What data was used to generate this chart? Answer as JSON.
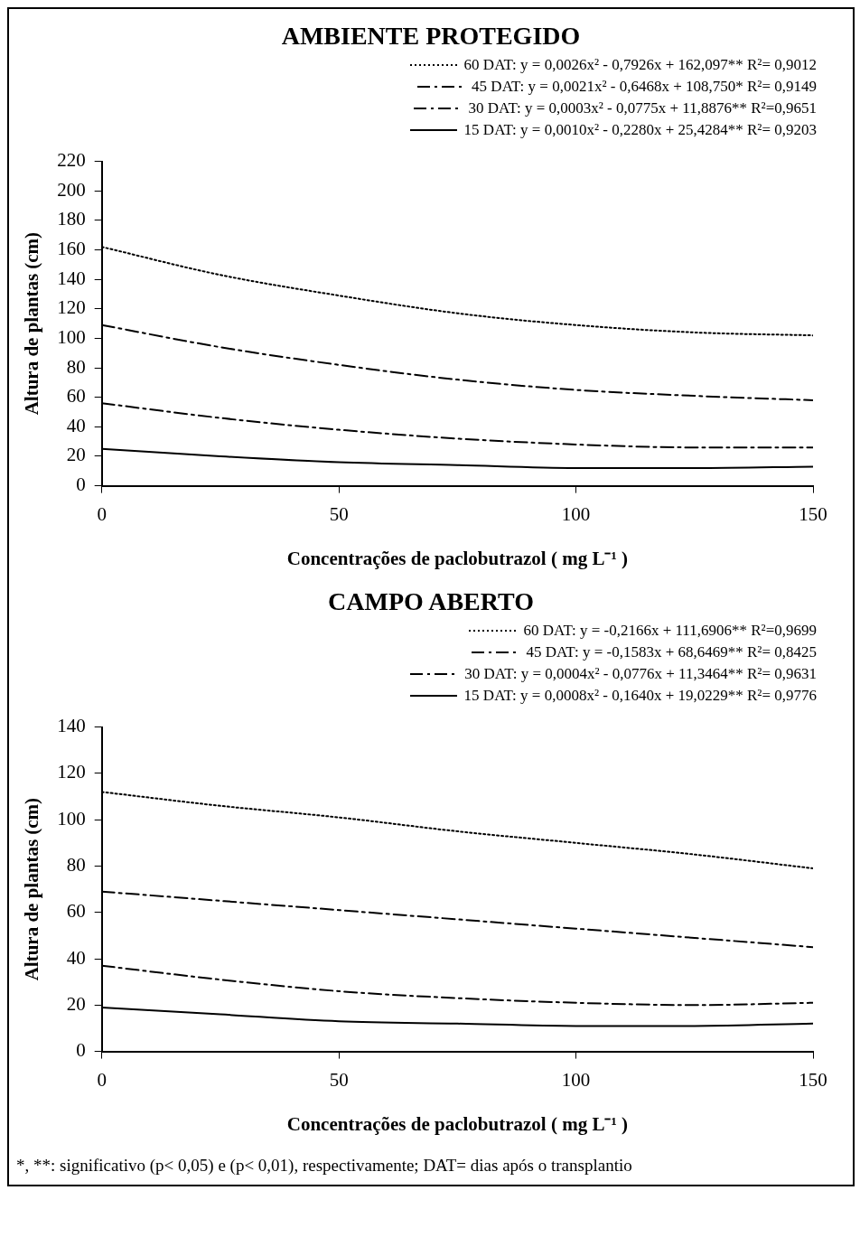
{
  "chart_data": [
    {
      "type": "line",
      "title": "AMBIENTE PROTEGIDO",
      "xlabel": "Concentrações de paclobutrazol ( mg L⁻¹ )",
      "ylabel": "Altura de plantas (cm)",
      "x": [
        0,
        25,
        50,
        75,
        100,
        125,
        150
      ],
      "series": [
        {
          "name": "60 DAT: y = 0,0026x² - 0,7926x + 162,097** R²= 0,9012",
          "color": "#000000",
          "line_style": "dotted",
          "values": [
            162,
            143,
            129,
            117,
            109,
            104,
            102
          ]
        },
        {
          "name": "45 DAT: y = 0,0021x² - 0,6468x + 108,750* R²= 0,9149",
          "color": "#000000",
          "line_style": "dashed",
          "values": [
            109,
            94,
            82,
            72,
            65,
            61,
            58
          ]
        },
        {
          "name": "30 DAT: y = 0,0003x² - 0,0775x + 11,8876** R²=0,9651",
          "color": "#000000",
          "line_style": "dashed",
          "values": [
            56,
            46,
            38,
            32,
            28,
            26,
            26
          ]
        },
        {
          "name": "15 DAT: y = 0,0010x² - 0,2280x + 25,4284** R²= 0,9203",
          "color": "#000000",
          "line_style": "solid",
          "values": [
            25,
            20,
            16,
            14,
            12,
            12,
            13
          ]
        }
      ],
      "xlim": [
        0,
        150
      ],
      "xticks": [
        0,
        50,
        100,
        150
      ],
      "ylim": [
        0,
        220
      ],
      "yticks": [
        0,
        20,
        40,
        60,
        80,
        100,
        120,
        140,
        160,
        180,
        200,
        220
      ],
      "grid": false,
      "legend": "top right",
      "marker": "none"
    },
    {
      "type": "line",
      "title": "CAMPO ABERTO",
      "xlabel": "Concentrações de paclobutrazol ( mg L⁻¹ )",
      "ylabel": "Altura de plantas (cm)",
      "x": [
        0,
        25,
        50,
        75,
        100,
        125,
        150
      ],
      "series": [
        {
          "name": "60 DAT: y = -0,2166x + 111,6906** R²=0,9699",
          "color": "#000000",
          "line_style": "dotted",
          "values": [
            112,
            106,
            101,
            95,
            90,
            85,
            79
          ]
        },
        {
          "name": "45 DAT: y = -0,1583x + 68,6469** R²= 0,8425",
          "color": "#000000",
          "line_style": "dashed",
          "values": [
            69,
            65,
            61,
            57,
            53,
            49,
            45
          ]
        },
        {
          "name": "30 DAT: y = 0,0004x² - 0,0776x + 11,3464** R²= 0,9631",
          "color": "#000000",
          "line_style": "dashed",
          "values": [
            37,
            31,
            26,
            23,
            21,
            20,
            21
          ]
        },
        {
          "name": "15 DAT: y = 0,0008x² - 0,1640x + 19,0229** R²= 0,9776",
          "color": "#000000",
          "line_style": "solid",
          "values": [
            19,
            16,
            13,
            12,
            11,
            11,
            12
          ]
        }
      ],
      "xlim": [
        0,
        150
      ],
      "xticks": [
        0,
        50,
        100,
        150
      ],
      "ylim": [
        0,
        140
      ],
      "yticks": [
        0,
        20,
        40,
        60,
        80,
        100,
        120,
        140
      ],
      "grid": false,
      "legend": "top right",
      "marker": "none",
      "annotations": [
        "*, **: significativo (p< 0,05) e (p< 0,01), respectivamente; DAT= dias após o transplantio"
      ]
    }
  ]
}
